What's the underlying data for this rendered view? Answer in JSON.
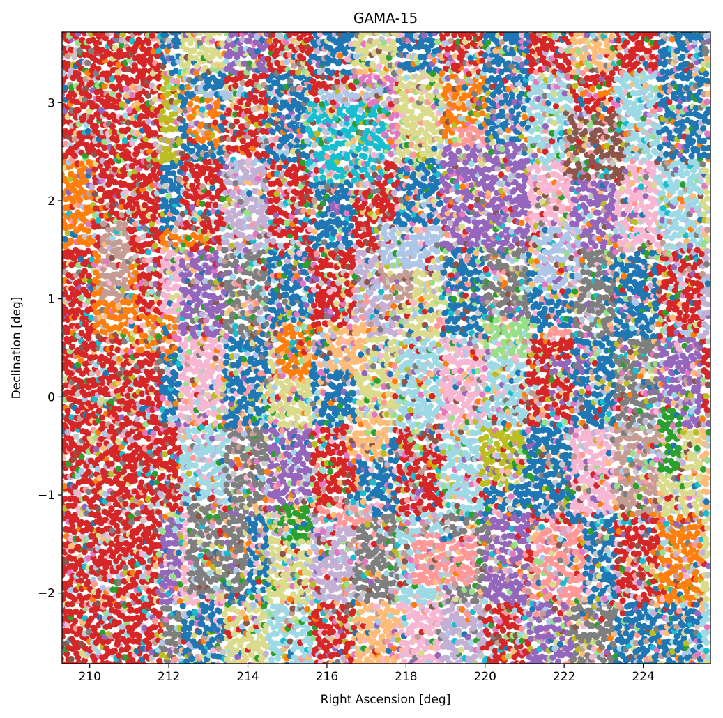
{
  "chart_data": {
    "type": "scatter",
    "title": "GAMA-15",
    "xlabel": "Right Ascension [deg]",
    "ylabel": "Declination [deg]",
    "xlim": [
      209.3,
      225.7
    ],
    "ylim": [
      -2.72,
      3.72
    ],
    "grid": false,
    "legend": "none",
    "x_ticks": [
      210,
      212,
      214,
      216,
      218,
      220,
      222,
      224
    ],
    "y_ticks": [
      -2,
      -1,
      0,
      1,
      2,
      3
    ],
    "x_tick_labels": [
      "210",
      "212",
      "214",
      "216",
      "218",
      "220",
      "222",
      "224"
    ],
    "y_tick_labels": [
      "−2",
      "−1",
      "0",
      "1",
      "2",
      "3"
    ],
    "palette": [
      "#1f77b4",
      "#aec7e8",
      "#ff7f0e",
      "#ffbb78",
      "#2ca02c",
      "#98df8a",
      "#d62728",
      "#ff9896",
      "#9467bd",
      "#c5b0d5",
      "#8c564b",
      "#c49c94",
      "#e377c2",
      "#f7b6d2",
      "#7f7f7f",
      "#c7c7c7",
      "#bcbd22",
      "#dbdb8d",
      "#17becf",
      "#9edae5"
    ],
    "footprint": {
      "columns": [
        {
          "ra_left_top": 211.7,
          "ra_right_top": 214.0,
          "dec_top": 3.05,
          "ra_left_bottom": 211.3,
          "ra_right_bottom": 213.7,
          "dec_bottom": -1.35
        },
        {
          "ra_left_top": 215.0,
          "ra_right_top": 217.6,
          "dec_top": 3.05,
          "ra_left_bottom": 214.9,
          "ra_right_bottom": 217.5,
          "dec_bottom": -1.45
        },
        {
          "ra_left_top": 218.3,
          "ra_right_top": 220.9,
          "dec_top": 3.05,
          "ra_left_bottom": 218.1,
          "ra_right_bottom": 220.6,
          "dec_bottom": -1.45
        },
        {
          "ra_left_top": 221.6,
          "ra_right_top": 224.1,
          "dec_top": 3.05,
          "ra_left_bottom": 221.3,
          "ra_right_bottom": 224.0,
          "dec_bottom": -1.45
        }
      ],
      "upper_caps": [
        {
          "ra_center": 213.1,
          "dec_peak": 3.3
        },
        {
          "ra_center": 216.5,
          "dec_peak": 3.3
        },
        {
          "ra_center": 219.7,
          "dec_peak": 3.35
        },
        {
          "ra_center": 222.7,
          "dec_peak": 3.4
        }
      ],
      "lower_tips": [
        {
          "ra_center": 212.1,
          "dec_min": -2.42
        },
        {
          "ra_center": 215.6,
          "dec_min": -2.42
        },
        {
          "ra_center": 218.9,
          "dec_min": -2.42
        },
        {
          "ra_center": 221.8,
          "dec_min": -2.42
        }
      ],
      "west_edge": [
        {
          "ra": 210.0,
          "dec": 1.45
        },
        {
          "ra": 210.9,
          "dec": 0.5
        },
        {
          "ra": 210.9,
          "dec": -1.0
        }
      ],
      "east_edge": [
        {
          "ra": 225.0,
          "dec": -0.35
        },
        {
          "ra": 224.1,
          "dec": 0.7
        },
        {
          "ra": 224.1,
          "dec": -1.0
        }
      ]
    },
    "patches": [
      {
        "ra": [
          210.3,
          211.0
        ],
        "dec": [
          1.0,
          1.8
        ],
        "color": "#c49c94"
      },
      {
        "ra": [
          211.3,
          212.3
        ],
        "dec": [
          0.45,
          0.85
        ],
        "color": "#ff7f0e"
      },
      {
        "ra": [
          211.8,
          213.0
        ],
        "dec": [
          1.55,
          1.7
        ],
        "color": "#ff7f0e"
      },
      {
        "ra": [
          212.5,
          213.3
        ],
        "dec": [
          2.6,
          3.05
        ],
        "color": "#ff7f0e"
      },
      {
        "ra": [
          212.5,
          214.0
        ],
        "dec": [
          -2.0,
          -1.1
        ],
        "color": "#7f7f7f"
      },
      {
        "ra": [
          214.7,
          215.6
        ],
        "dec": [
          0.2,
          0.75
        ],
        "color": "#ff7f0e"
      },
      {
        "ra": [
          216.0,
          217.0
        ],
        "dec": [
          0.25,
          0.75
        ],
        "color": "#ffbb78"
      },
      {
        "ra": [
          215.5,
          217.5
        ],
        "dec": [
          2.2,
          3.0
        ],
        "color": "#17becf"
      },
      {
        "ra": [
          217.4,
          219.0
        ],
        "dec": [
          1.3,
          1.75
        ],
        "color": "#aec7e8"
      },
      {
        "ra": [
          217.3,
          218.2
        ],
        "dec": [
          1.0,
          1.3
        ],
        "color": "#c49c94"
      },
      {
        "ra": [
          218.9,
          221.1
        ],
        "dec": [
          1.5,
          2.6
        ],
        "color": "#9467bd"
      },
      {
        "ra": [
          219.2,
          220.0
        ],
        "dec": [
          2.55,
          2.75
        ],
        "color": "#ff9896"
      },
      {
        "ra": [
          220.0,
          221.1
        ],
        "dec": [
          0.4,
          0.8
        ],
        "color": "#98df8a"
      },
      {
        "ra": [
          219.9,
          221.0
        ],
        "dec": [
          -0.9,
          -0.3
        ],
        "color": "#bcbd22"
      },
      {
        "ra": [
          221.3,
          222.4
        ],
        "dec": [
          1.1,
          1.75
        ],
        "color": "#aec7e8"
      },
      {
        "ra": [
          222.0,
          223.5
        ],
        "dec": [
          2.2,
          2.9
        ],
        "color": "#8c564b"
      },
      {
        "ra": [
          214.7,
          215.6
        ],
        "dec": [
          -1.45,
          -1.1
        ],
        "color": "#2ca02c"
      },
      {
        "ra": [
          224.4,
          225.0
        ],
        "dec": [
          -0.8,
          -0.1
        ],
        "color": "#2ca02c"
      },
      {
        "ra": [
          221.2,
          222.5
        ],
        "dec": [
          -2.1,
          -1.3
        ],
        "color": "#ff9896"
      },
      {
        "ra": [
          218.2,
          219.8
        ],
        "dec": [
          -1.9,
          -1.4
        ],
        "color": "#ff9896"
      },
      {
        "ra": [
          215.8,
          217.2
        ],
        "dec": [
          -1.3,
          -1.1
        ],
        "color": "#ff9896"
      },
      {
        "ra": [
          221.5,
          222.5
        ],
        "dec": [
          0.25,
          0.4
        ],
        "color": "#9467bd"
      },
      {
        "ra": [
          216.5,
          217.6
        ],
        "dec": [
          -0.6,
          -0.2
        ],
        "color": "#ffbb78"
      },
      {
        "ra": [
          211.0,
          211.9
        ],
        "dec": [
          -0.9,
          -0.4
        ],
        "color": "#d62728"
      },
      {
        "ra": [
          221.4,
          222.2
        ],
        "dec": [
          0.6,
          0.7
        ],
        "color": "#ff9896"
      },
      {
        "ra": [
          219.0,
          219.8
        ],
        "dec": [
          3.05,
          3.15
        ],
        "color": "#ff7f0e"
      },
      {
        "ra": [
          222.3,
          223.3
        ],
        "dec": [
          3.05,
          3.15
        ],
        "color": "#ff7f0e"
      },
      {
        "ra": [
          212.7,
          214.0
        ],
        "dec": [
          3.05,
          3.15
        ],
        "color": "#aec7e8"
      },
      {
        "ra": [
          215.9,
          217.4
        ],
        "dec": [
          3.05,
          3.15
        ],
        "color": "#aec7e8"
      }
    ]
  }
}
